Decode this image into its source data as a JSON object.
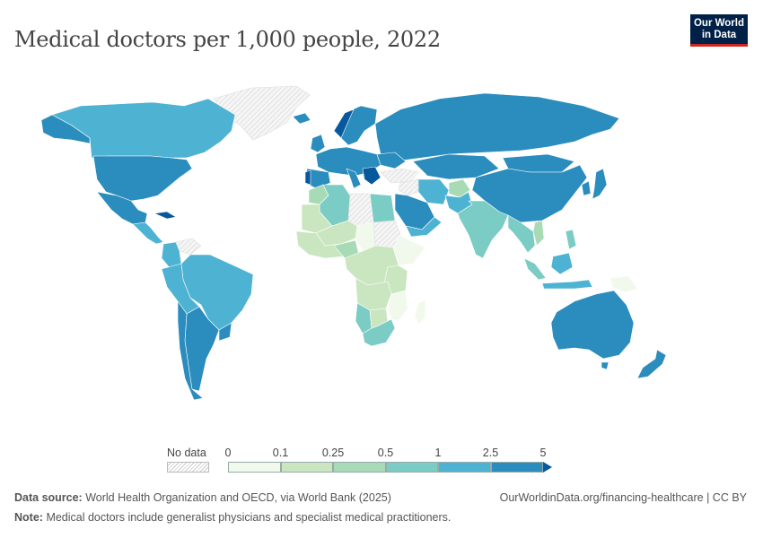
{
  "title": "Medical doctors per 1,000 people, 2022",
  "logo": {
    "line1": "Our World",
    "line2": "in Data"
  },
  "legend": {
    "no_data_label": "No data",
    "ticks": [
      "0",
      "0.1",
      "0.25",
      "0.5",
      "1",
      "2.5",
      "5"
    ],
    "colors": [
      "#f1f9ec",
      "#cae6c1",
      "#a8dbb5",
      "#7bccc4",
      "#4eb3d3",
      "#2b8cbe",
      "#08589e"
    ]
  },
  "footer": {
    "source_label": "Data source:",
    "source_text": "World Health Organization and OECD, via World Bank (2025)",
    "note_label": "Note:",
    "note_text": "Medical doctors include generalist physicians and specialist medical practitioners.",
    "url_text": "OurWorldinData.org/financing-healthcare | CC BY"
  },
  "colors": {
    "no_data": "#e8e8e8",
    "border": "#ffffff"
  }
}
